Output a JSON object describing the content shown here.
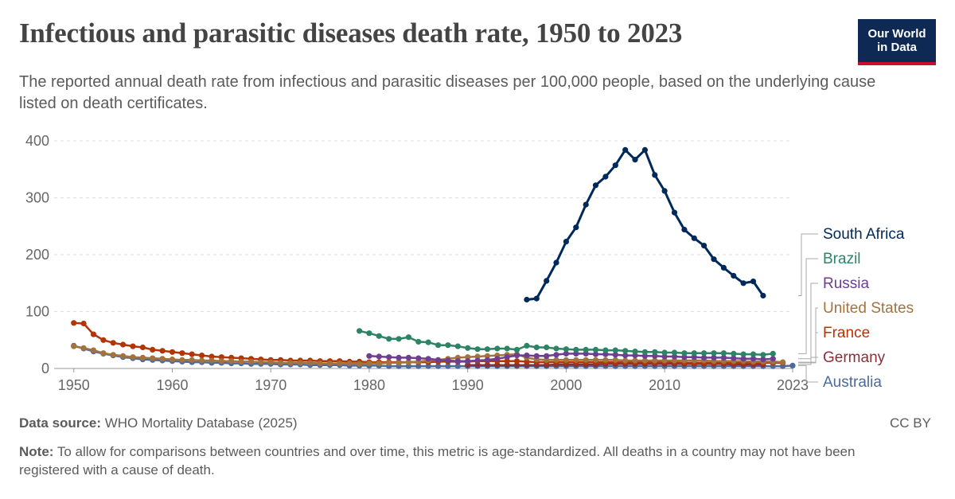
{
  "header": {
    "title": "Infectious and parasitic diseases death rate, 1950 to 2023",
    "subtitle": "The reported annual death rate from infectious and parasitic diseases per 100,000 people, based on the underlying cause listed on death certificates.",
    "logo_line1": "Our World",
    "logo_line2": "in Data"
  },
  "footer": {
    "source_label": "Data source:",
    "source_text": "WHO Mortality Database (2025)",
    "license": "CC BY",
    "note_label": "Note:",
    "note_text": "To allow for comparisons between countries and over time, this metric is age-standardized. All deaths in a country may not have been registered with a cause of death."
  },
  "chart_data": {
    "type": "line",
    "title": "Infectious and parasitic diseases death rate, 1950 to 2023",
    "xlim": [
      1948,
      2023
    ],
    "ylim": [
      0,
      400
    ],
    "yticks": [
      0,
      100,
      200,
      300,
      400
    ],
    "xticks": [
      1950,
      1960,
      1970,
      1980,
      1990,
      2000,
      2010,
      2023
    ],
    "grid": "horizontal-dashed",
    "legend_position": "right",
    "series": [
      {
        "name": "South Africa",
        "color": "#00295b",
        "x": [
          1996,
          1997,
          1998,
          1999,
          2000,
          2001,
          2002,
          2003,
          2004,
          2005,
          2006,
          2007,
          2008,
          2009,
          2010,
          2011,
          2012,
          2013,
          2014,
          2015,
          2016,
          2017,
          2018,
          2019,
          2020
        ],
        "y": [
          121,
          123,
          154,
          186,
          223,
          248,
          288,
          322,
          337,
          357,
          384,
          367,
          384,
          340,
          312,
          274,
          244,
          229,
          216,
          192,
          177,
          163,
          150,
          153,
          128
        ]
      },
      {
        "name": "Brazil",
        "color": "#2c8465",
        "x": [
          1979,
          1980,
          1981,
          1982,
          1983,
          1984,
          1985,
          1986,
          1987,
          1988,
          1989,
          1990,
          1991,
          1992,
          1993,
          1994,
          1995,
          1996,
          1997,
          1998,
          1999,
          2000,
          2001,
          2002,
          2003,
          2004,
          2005,
          2006,
          2007,
          2008,
          2009,
          2010,
          2011,
          2012,
          2013,
          2014,
          2015,
          2016,
          2017,
          2018,
          2019,
          2020,
          2021
        ],
        "y": [
          66,
          62,
          57,
          52,
          52,
          55,
          47,
          46,
          41,
          41,
          39,
          36,
          34,
          34,
          35,
          35,
          33,
          40,
          37,
          37,
          35,
          34,
          33,
          33,
          33,
          32,
          32,
          31,
          30,
          29,
          29,
          28,
          28,
          27,
          27,
          27,
          27,
          27,
          26,
          25,
          25,
          24,
          26
        ]
      },
      {
        "name": "Russia",
        "color": "#6d3e91",
        "x": [
          1980,
          1981,
          1982,
          1983,
          1984,
          1985,
          1986,
          1987,
          1988,
          1989,
          1990,
          1991,
          1992,
          1993,
          1994,
          1995,
          1996,
          1997,
          1998,
          1999,
          2000,
          2001,
          2002,
          2003,
          2004,
          2005,
          2006,
          2007,
          2008,
          2009,
          2010,
          2011,
          2012,
          2013,
          2014,
          2015,
          2016,
          2017,
          2018,
          2019,
          2020,
          2021
        ],
        "y": [
          22,
          21,
          20,
          19,
          19,
          18,
          17,
          15,
          14,
          13,
          13,
          14,
          15,
          17,
          20,
          23,
          23,
          22,
          22,
          24,
          26,
          26,
          26,
          25,
          25,
          24,
          23,
          23,
          22,
          22,
          21,
          21,
          20,
          20,
          19,
          19,
          19,
          18,
          17,
          17,
          16,
          17
        ]
      },
      {
        "name": "United States",
        "color": "#a2733f",
        "x": [
          1950,
          1951,
          1952,
          1953,
          1954,
          1955,
          1956,
          1957,
          1958,
          1959,
          1960,
          1961,
          1962,
          1963,
          1964,
          1965,
          1966,
          1967,
          1968,
          1969,
          1970,
          1971,
          1972,
          1973,
          1974,
          1975,
          1976,
          1977,
          1978,
          1979,
          1980,
          1981,
          1982,
          1983,
          1984,
          1985,
          1986,
          1987,
          1988,
          1989,
          1990,
          1991,
          1992,
          1993,
          1994,
          1995,
          1996,
          1997,
          1998,
          1999,
          2000,
          2001,
          2002,
          2003,
          2004,
          2005,
          2006,
          2007,
          2008,
          2009,
          2010,
          2011,
          2012,
          2013,
          2014,
          2015,
          2016,
          2017,
          2018,
          2019,
          2020,
          2021,
          2022
        ],
        "y": [
          39,
          36,
          32,
          27,
          24,
          22,
          20,
          19,
          18,
          17,
          16,
          15,
          15,
          14,
          14,
          13,
          13,
          12,
          12,
          11,
          11,
          10,
          10,
          10,
          10,
          9,
          9,
          9,
          9,
          8,
          9,
          9,
          10,
          10,
          11,
          12,
          14,
          15,
          17,
          19,
          20,
          21,
          22,
          23,
          24,
          25,
          19,
          16,
          15,
          15,
          15,
          15,
          15,
          15,
          15,
          15,
          14,
          14,
          14,
          14,
          14,
          14,
          14,
          14,
          14,
          13,
          13,
          13,
          13,
          12,
          12,
          12,
          11
        ]
      },
      {
        "name": "France",
        "color": "#b13507",
        "x": [
          1950,
          1951,
          1952,
          1953,
          1954,
          1955,
          1956,
          1957,
          1958,
          1959,
          1960,
          1961,
          1962,
          1963,
          1964,
          1965,
          1966,
          1967,
          1968,
          1969,
          1970,
          1971,
          1972,
          1973,
          1974,
          1975,
          1976,
          1977,
          1978,
          1979,
          1980,
          1981,
          1982,
          1983,
          1984,
          1985,
          1986,
          1987,
          1988,
          1989,
          1990,
          1991,
          1992,
          1993,
          1994,
          1995,
          1996,
          1997,
          1998,
          1999,
          2000,
          2001,
          2002,
          2003,
          2004,
          2005,
          2006,
          2007,
          2008,
          2009,
          2010,
          2011,
          2012,
          2013,
          2014,
          2015,
          2016,
          2017,
          2018,
          2019,
          2020,
          2021,
          2022
        ],
        "y": [
          80,
          79,
          60,
          50,
          45,
          42,
          39,
          37,
          33,
          31,
          29,
          27,
          25,
          23,
          21,
          20,
          19,
          18,
          17,
          16,
          15,
          15,
          14,
          14,
          14,
          13,
          13,
          13,
          12,
          12,
          11,
          11,
          11,
          11,
          11,
          11,
          11,
          12,
          12,
          12,
          12,
          13,
          13,
          13,
          13,
          13,
          12,
          11,
          11,
          11,
          11,
          11,
          11,
          11,
          11,
          11,
          11,
          11,
          11,
          11,
          11,
          11,
          10,
          10,
          10,
          10,
          10,
          10,
          10,
          10,
          10,
          10,
          10
        ]
      },
      {
        "name": "Germany",
        "color": "#883039",
        "x": [
          1990,
          1991,
          1992,
          1993,
          1994,
          1995,
          1996,
          1997,
          1998,
          1999,
          2000,
          2001,
          2002,
          2003,
          2004,
          2005,
          2006,
          2007,
          2008,
          2009,
          2010,
          2011,
          2012,
          2013,
          2014,
          2015,
          2016,
          2017,
          2018,
          2019,
          2020
        ],
        "y": [
          6,
          6,
          6,
          6,
          6,
          6,
          6,
          6,
          6,
          7,
          7,
          7,
          7,
          7,
          8,
          8,
          8,
          8,
          8,
          8,
          8,
          8,
          8,
          8,
          8,
          8,
          8,
          7,
          7,
          7,
          7
        ]
      },
      {
        "name": "Australia",
        "color": "#4c6a9c",
        "x": [
          1950,
          1951,
          1952,
          1953,
          1954,
          1955,
          1956,
          1957,
          1958,
          1959,
          1960,
          1961,
          1962,
          1963,
          1964,
          1965,
          1966,
          1967,
          1968,
          1969,
          1970,
          1971,
          1972,
          1973,
          1974,
          1975,
          1976,
          1977,
          1978,
          1979,
          1980,
          1981,
          1982,
          1983,
          1984,
          1985,
          1986,
          1987,
          1988,
          1989,
          1990,
          1991,
          1992,
          1993,
          1994,
          1995,
          1996,
          1997,
          1998,
          1999,
          2000,
          2001,
          2002,
          2003,
          2004,
          2005,
          2006,
          2007,
          2008,
          2009,
          2010,
          2011,
          2012,
          2013,
          2014,
          2015,
          2016,
          2017,
          2018,
          2019,
          2020,
          2021,
          2022,
          2023
        ],
        "y": [
          40,
          35,
          30,
          26,
          23,
          20,
          18,
          16,
          15,
          14,
          13,
          12,
          11,
          11,
          10,
          10,
          9,
          9,
          8,
          8,
          8,
          7,
          7,
          7,
          6,
          6,
          6,
          6,
          5,
          5,
          5,
          5,
          4,
          4,
          4,
          4,
          4,
          4,
          4,
          4,
          4,
          4,
          4,
          4,
          4,
          4,
          4,
          4,
          4,
          4,
          4,
          4,
          4,
          4,
          4,
          4,
          4,
          4,
          4,
          4,
          4,
          4,
          4,
          4,
          4,
          4,
          4,
          4,
          4,
          4,
          4,
          4,
          4,
          5
        ]
      }
    ]
  }
}
